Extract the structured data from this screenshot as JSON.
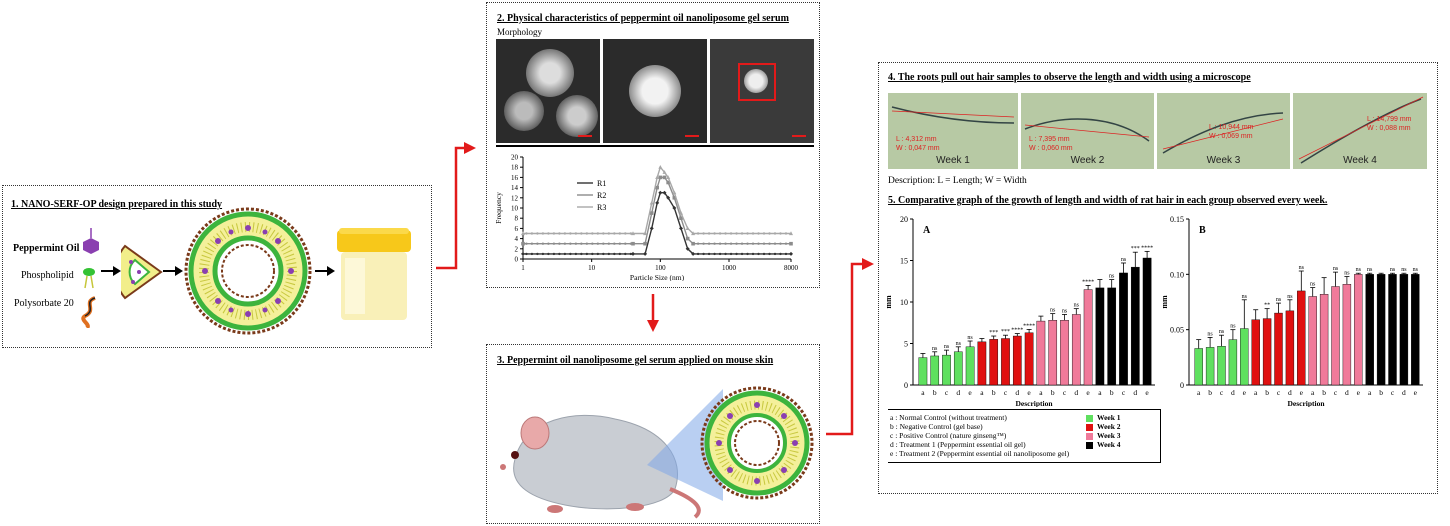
{
  "panel1": {
    "title": "1. NANO-SERF-OP design prepared in this study",
    "labels": [
      "Peppermint Oil",
      "Phospholipid",
      "Polysorbate 20"
    ]
  },
  "panel2": {
    "title": "2. Physical characteristics of peppermint oil nanoliposome gel serum",
    "subtitle": "Morphology"
  },
  "panel3": {
    "title": "3. Peppermint oil nanoliposome gel serum applied on mouse skin"
  },
  "panel4": {
    "title": "4. The roots pull out hair samples to observe the length and width using a microscope",
    "weeks": [
      {
        "label": "Week 1",
        "length": "L : 4,312 mm",
        "width": "W : 0,047 mm"
      },
      {
        "label": "Week 2",
        "length": "L : 7,395 mm",
        "width": "W : 0,060 mm"
      },
      {
        "label": "Week 3",
        "length": "L : 10,944 mm",
        "width": "W : 0,069 mm"
      },
      {
        "label": "Week 4",
        "length": "L : 14,799 mm",
        "width": "W : 0,088 mm"
      }
    ],
    "description": "Description: L = Length; W = Width"
  },
  "panel5": {
    "title": "5. Comparative graph of the growth of length and width of rat hair in each group observed every week."
  },
  "legend": {
    "groups": [
      "a : Normal Control (without treatment)",
      "b : Negative Control (gel base)",
      "c : Positive Control (nature ginseng™)",
      "d : Treatment 1 (Peppermint essential oil gel)",
      "e : Treatment 2 (Peppermint essential oil nanoliposome gel)"
    ],
    "weeks": [
      {
        "label": "Week 1",
        "color": "#5fe05f"
      },
      {
        "label": "Week 2",
        "color": "#e01010"
      },
      {
        "label": "Week 3",
        "color": "#f07a9a"
      },
      {
        "label": "Week 4",
        "color": "#000000"
      }
    ]
  },
  "chart_data": [
    {
      "type": "line",
      "xlabel": "Particle Size (nm)",
      "ylabel": "Frequency",
      "xscale": "log",
      "xlim": [
        1,
        8000
      ],
      "ylim": [
        0,
        20
      ],
      "xticks": [
        "1",
        "10",
        "100",
        "1000",
        "8000"
      ],
      "yticks": [
        "0",
        "2",
        "4",
        "6",
        "8",
        "10",
        "12",
        "14",
        "16",
        "18",
        "20"
      ],
      "series": [
        {
          "name": "R1",
          "color": "#333333",
          "x": [
            1,
            40,
            60,
            75,
            90,
            100,
            115,
            130,
            160,
            200,
            250,
            300,
            8000
          ],
          "y": [
            1,
            1,
            1,
            6,
            11,
            13,
            13,
            12,
            10,
            6,
            2,
            1,
            1
          ]
        },
        {
          "name": "R2",
          "color": "#8c8c8c",
          "x": [
            1,
            40,
            60,
            75,
            90,
            100,
            115,
            130,
            160,
            200,
            250,
            300,
            8000
          ],
          "y": [
            3,
            3,
            3,
            9,
            14,
            16,
            16,
            15,
            12,
            8,
            4,
            3,
            3
          ]
        },
        {
          "name": "R3",
          "color": "#a8a8a8",
          "x": [
            1,
            40,
            60,
            75,
            90,
            100,
            115,
            130,
            160,
            200,
            250,
            300,
            8000
          ],
          "y": [
            5,
            5,
            5,
            11,
            16,
            18,
            17,
            16,
            13,
            9,
            6,
            5,
            5
          ]
        }
      ]
    },
    {
      "type": "bar",
      "title": "A",
      "xlabel": "Description",
      "ylabel": "mm",
      "ylim": [
        0,
        20
      ],
      "yticks": [
        "0",
        "5",
        "10",
        "15",
        "20"
      ],
      "categories": [
        "a",
        "b",
        "c",
        "d",
        "e",
        "a",
        "b",
        "c",
        "d",
        "e",
        "a",
        "b",
        "c",
        "d",
        "e",
        "a",
        "b",
        "c",
        "d",
        "e"
      ],
      "values": [
        3.3,
        3.5,
        3.6,
        4.0,
        4.6,
        5.2,
        5.5,
        5.6,
        5.9,
        6.3,
        7.7,
        7.8,
        7.8,
        8.5,
        11.5,
        11.7,
        11.7,
        13.5,
        14.2,
        15.3
      ],
      "errors": [
        0.5,
        0.5,
        0.6,
        0.6,
        0.7,
        0.4,
        0.4,
        0.4,
        0.3,
        0.4,
        0.6,
        0.8,
        0.7,
        0.7,
        0.5,
        1.0,
        1.0,
        1.2,
        1.8,
        0.8
      ],
      "significance": [
        "",
        "ns",
        "ns",
        "ns",
        "ns",
        "",
        "***",
        "***",
        "****",
        "****",
        "",
        "ns",
        "ns",
        "ns",
        "****",
        "",
        "ns",
        "ns",
        "***",
        "****"
      ],
      "week_colors": [
        "#5fe05f",
        "#e01010",
        "#f07a9a",
        "#000000"
      ]
    },
    {
      "type": "bar",
      "title": "B",
      "xlabel": "Description",
      "ylabel": "mm",
      "ylim": [
        0,
        0.15
      ],
      "yticks": [
        "0",
        "0.05",
        "0.10",
        "0.15"
      ],
      "categories": [
        "a",
        "b",
        "c",
        "d",
        "e",
        "a",
        "b",
        "c",
        "d",
        "e",
        "a",
        "b",
        "c",
        "d",
        "e",
        "a",
        "b",
        "c",
        "d",
        "e"
      ],
      "values": [
        0.033,
        0.034,
        0.035,
        0.041,
        0.051,
        0.059,
        0.06,
        0.065,
        0.067,
        0.085,
        0.08,
        0.082,
        0.089,
        0.091,
        0.1,
        0.1,
        0.1,
        0.1,
        0.1,
        0.1
      ],
      "errors": [
        0.008,
        0.009,
        0.01,
        0.009,
        0.026,
        0.009,
        0.009,
        0.009,
        0.01,
        0.018,
        0.008,
        0.015,
        0.013,
        0.007,
        0.001,
        0.001,
        0.001,
        0.001,
        0.001,
        0.001
      ],
      "significance": [
        "",
        "ns",
        "ns",
        "ns",
        "ns",
        "",
        "**",
        "ns",
        "ns",
        "ns",
        "ns",
        "",
        "ns",
        "ns",
        "ns",
        "ns",
        "",
        "ns",
        "ns",
        "ns"
      ],
      "week_colors": [
        "#5fe05f",
        "#e01010",
        "#f07a9a",
        "#000000"
      ]
    }
  ]
}
